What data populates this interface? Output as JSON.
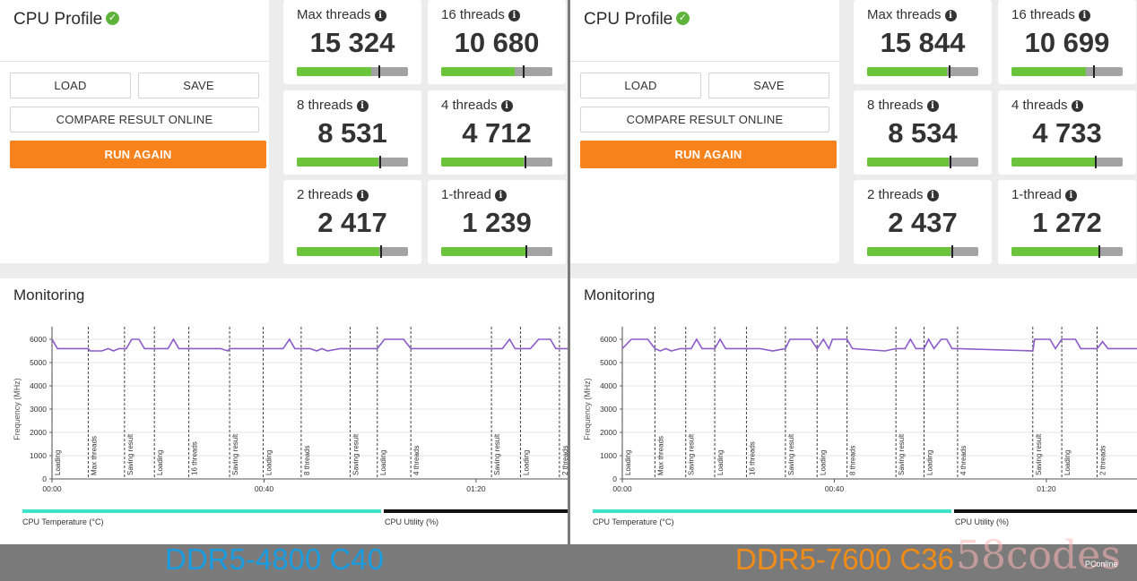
{
  "panels": [
    {
      "profile": {
        "title": "CPU Profile",
        "load": "LOAD",
        "save": "SAVE",
        "compare": "COMPARE RESULT ONLINE",
        "run": "RUN AGAIN"
      },
      "scores": [
        {
          "label": "Max threads",
          "value": "15 324",
          "fill": 0.67,
          "marker": 0.74
        },
        {
          "label": "16 threads",
          "value": "10 680",
          "fill": 0.66,
          "marker": 0.74
        },
        {
          "label": "8 threads",
          "value": "8 531",
          "fill": 0.73,
          "marker": 0.75
        },
        {
          "label": "4 threads",
          "value": "4 712",
          "fill": 0.74,
          "marker": 0.76
        },
        {
          "label": "2 threads",
          "value": "2 417",
          "fill": 0.74,
          "marker": 0.76
        },
        {
          "label": "1-thread",
          "value": "1 239",
          "fill": 0.76,
          "marker": 0.77
        }
      ],
      "monitoring": {
        "title": "Monitoring",
        "ylabel": "Frequency (MHz)",
        "yticks": [
          "6000",
          "5000",
          "4000",
          "3000",
          "2000",
          "1000",
          "0"
        ],
        "xticks": [
          "00:00",
          "00:40",
          "01:20"
        ],
        "markers": [
          {
            "label": "Loading",
            "t": 0
          },
          {
            "label": "Max threads",
            "t": 40
          },
          {
            "label": "Saving result",
            "t": 80
          },
          {
            "label": "Loading",
            "t": 113
          },
          {
            "label": "16 threads",
            "t": 151
          },
          {
            "label": "Saving result",
            "t": 196
          },
          {
            "label": "Loading",
            "t": 233
          },
          {
            "label": "8 threads",
            "t": 275
          },
          {
            "label": "Saving result",
            "t": 329
          },
          {
            "label": "Loading",
            "t": 359
          },
          {
            "label": "4 threads",
            "t": 396
          },
          {
            "label": "Saving result",
            "t": 485
          },
          {
            "label": "Loading",
            "t": 517
          },
          {
            "label": "2 threads",
            "t": 560
          }
        ],
        "series": [
          [
            0,
            6000
          ],
          [
            6,
            5600
          ],
          [
            40,
            5600
          ],
          [
            42,
            5500
          ],
          [
            55,
            5500
          ],
          [
            62,
            5600
          ],
          [
            68,
            5500
          ],
          [
            74,
            5600
          ],
          [
            80,
            5600
          ],
          [
            82,
            5600
          ],
          [
            88,
            6000
          ],
          [
            96,
            6000
          ],
          [
            102,
            5600
          ],
          [
            113,
            5600
          ],
          [
            116,
            5600
          ],
          [
            128,
            5600
          ],
          [
            134,
            6000
          ],
          [
            140,
            5600
          ],
          [
            151,
            5600
          ],
          [
            160,
            5600
          ],
          [
            186,
            5600
          ],
          [
            194,
            5500
          ],
          [
            196,
            5600
          ],
          [
            230,
            5600
          ],
          [
            233,
            5600
          ],
          [
            255,
            5600
          ],
          [
            262,
            6000
          ],
          [
            268,
            5600
          ],
          [
            275,
            5600
          ],
          [
            285,
            5600
          ],
          [
            292,
            5500
          ],
          [
            298,
            5600
          ],
          [
            304,
            5500
          ],
          [
            318,
            5600
          ],
          [
            329,
            5600
          ],
          [
            352,
            5600
          ],
          [
            359,
            5600
          ],
          [
            367,
            6000
          ],
          [
            388,
            6000
          ],
          [
            396,
            5600
          ],
          [
            485,
            5600
          ],
          [
            497,
            5600
          ],
          [
            505,
            6000
          ],
          [
            511,
            5600
          ],
          [
            517,
            5600
          ],
          [
            528,
            5600
          ],
          [
            537,
            6000
          ],
          [
            550,
            6000
          ],
          [
            556,
            5600
          ],
          [
            560,
            5600
          ],
          [
            570,
            5600
          ]
        ],
        "legend_temp": "CPU Temperature (°C)",
        "legend_util": "CPU Utility (%)"
      },
      "caption": "DDR5-4800 C40"
    },
    {
      "profile": {
        "title": "CPU Profile",
        "load": "LOAD",
        "save": "SAVE",
        "compare": "COMPARE RESULT ONLINE",
        "run": "RUN AGAIN"
      },
      "scores": [
        {
          "label": "Max threads",
          "value": "15 844",
          "fill": 0.72,
          "marker": 0.74
        },
        {
          "label": "16 threads",
          "value": "10 699",
          "fill": 0.67,
          "marker": 0.74
        },
        {
          "label": "8 threads",
          "value": "8 534",
          "fill": 0.73,
          "marker": 0.75
        },
        {
          "label": "4 threads",
          "value": "4 733",
          "fill": 0.75,
          "marker": 0.76
        },
        {
          "label": "2 threads",
          "value": "2 437",
          "fill": 0.75,
          "marker": 0.77
        },
        {
          "label": "1-thread",
          "value": "1 272",
          "fill": 0.78,
          "marker": 0.79
        }
      ],
      "monitoring": {
        "title": "Monitoring",
        "ylabel": "Frequency (MHz)",
        "yticks": [
          "6000",
          "5000",
          "4000",
          "3000",
          "2000",
          "1000",
          "0"
        ],
        "xticks": [
          "00:00",
          "00:40",
          "01:20"
        ],
        "markers": [
          {
            "label": "Loading",
            "t": 0
          },
          {
            "label": "Max threads",
            "t": 36
          },
          {
            "label": "Saving result",
            "t": 70
          },
          {
            "label": "Loading",
            "t": 102
          },
          {
            "label": "16 threads",
            "t": 137
          },
          {
            "label": "Saving result",
            "t": 180
          },
          {
            "label": "Loading",
            "t": 215
          },
          {
            "label": "8 threads",
            "t": 248
          },
          {
            "label": "Saving result",
            "t": 302
          },
          {
            "label": "Loading",
            "t": 333
          },
          {
            "label": "4 threads",
            "t": 370
          },
          {
            "label": "Saving result",
            "t": 453
          },
          {
            "label": "Loading",
            "t": 485
          },
          {
            "label": "2 threads",
            "t": 524
          }
        ],
        "series": [
          [
            0,
            5600
          ],
          [
            10,
            6000
          ],
          [
            28,
            6000
          ],
          [
            36,
            5600
          ],
          [
            42,
            5500
          ],
          [
            48,
            5600
          ],
          [
            54,
            5500
          ],
          [
            64,
            5600
          ],
          [
            70,
            5600
          ],
          [
            76,
            5600
          ],
          [
            82,
            6000
          ],
          [
            88,
            5600
          ],
          [
            102,
            5600
          ],
          [
            108,
            6000
          ],
          [
            114,
            5600
          ],
          [
            137,
            5600
          ],
          [
            152,
            5600
          ],
          [
            166,
            5500
          ],
          [
            180,
            5600
          ],
          [
            185,
            6000
          ],
          [
            208,
            6000
          ],
          [
            215,
            5600
          ],
          [
            222,
            6000
          ],
          [
            228,
            5600
          ],
          [
            232,
            6000
          ],
          [
            248,
            6000
          ],
          [
            254,
            5600
          ],
          [
            290,
            5500
          ],
          [
            302,
            5600
          ],
          [
            312,
            5600
          ],
          [
            318,
            6000
          ],
          [
            324,
            5600
          ],
          [
            333,
            5600
          ],
          [
            338,
            6000
          ],
          [
            344,
            5600
          ],
          [
            352,
            6000
          ],
          [
            358,
            6000
          ],
          [
            364,
            5600
          ],
          [
            370,
            5600
          ],
          [
            453,
            5500
          ],
          [
            455,
            6000
          ],
          [
            472,
            6000
          ],
          [
            478,
            5600
          ],
          [
            485,
            6000
          ],
          [
            500,
            6000
          ],
          [
            506,
            5600
          ],
          [
            524,
            5600
          ],
          [
            530,
            5900
          ],
          [
            536,
            5600
          ],
          [
            570,
            5600
          ]
        ],
        "legend_temp": "CPU Temperature (°C)",
        "legend_util": "CPU Utility (%)"
      },
      "caption": "DDR5-7600 C36"
    }
  ],
  "watermark": "58codes",
  "credit": "PConline"
}
